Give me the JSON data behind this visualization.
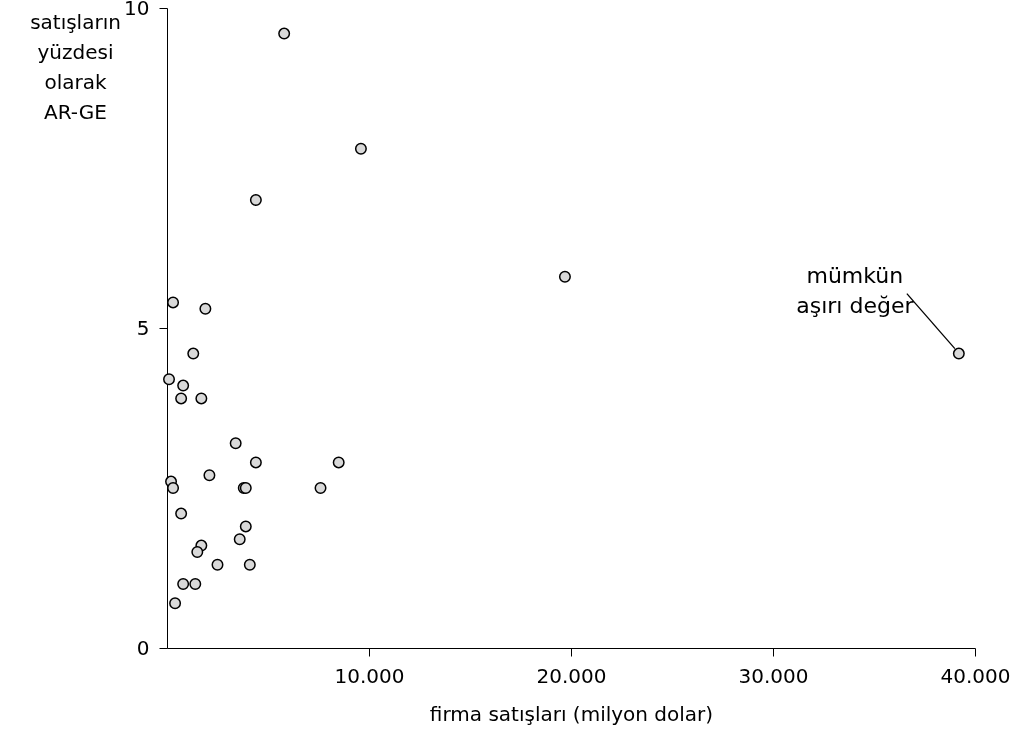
{
  "chart_data": {
    "type": "scatter",
    "xlabel": "firma satışları (milyon dolar)",
    "ylabel": "satışların\nyüzdesi\nolarak\nAR-GE",
    "x": [
      5800,
      9600,
      4400,
      19700,
      39200,
      300,
      1900,
      1300,
      100,
      800,
      700,
      1700,
      3400,
      4400,
      8500,
      2100,
      200,
      300,
      3800,
      3900,
      7600,
      700,
      3900,
      3600,
      1700,
      1500,
      2500,
      4100,
      800,
      1400,
      400
    ],
    "values": [
      9.6,
      7.8,
      7.0,
      5.8,
      4.6,
      5.4,
      5.3,
      4.6,
      4.2,
      4.1,
      3.9,
      3.9,
      3.2,
      2.9,
      2.9,
      2.7,
      2.6,
      2.5,
      2.5,
      2.5,
      2.5,
      2.1,
      1.9,
      1.7,
      1.6,
      1.5,
      1.3,
      1.3,
      1.0,
      1.0,
      0.7
    ],
    "color": "#d9d9d9",
    "marker": "circle",
    "xlim": [
      0,
      40000
    ],
    "xticks": [
      {
        "value": 10000,
        "label": "10.000"
      },
      {
        "value": 20000,
        "label": "20.000"
      },
      {
        "value": 30000,
        "label": "30.000"
      },
      {
        "value": 40000,
        "label": "40.000"
      }
    ],
    "ylim": [
      0,
      10
    ],
    "yticks": [
      0,
      5,
      10
    ],
    "grid": false,
    "annotations": [
      {
        "text": "mümkün\naşırı değer",
        "x": 39200,
        "y": 4.6
      }
    ]
  }
}
